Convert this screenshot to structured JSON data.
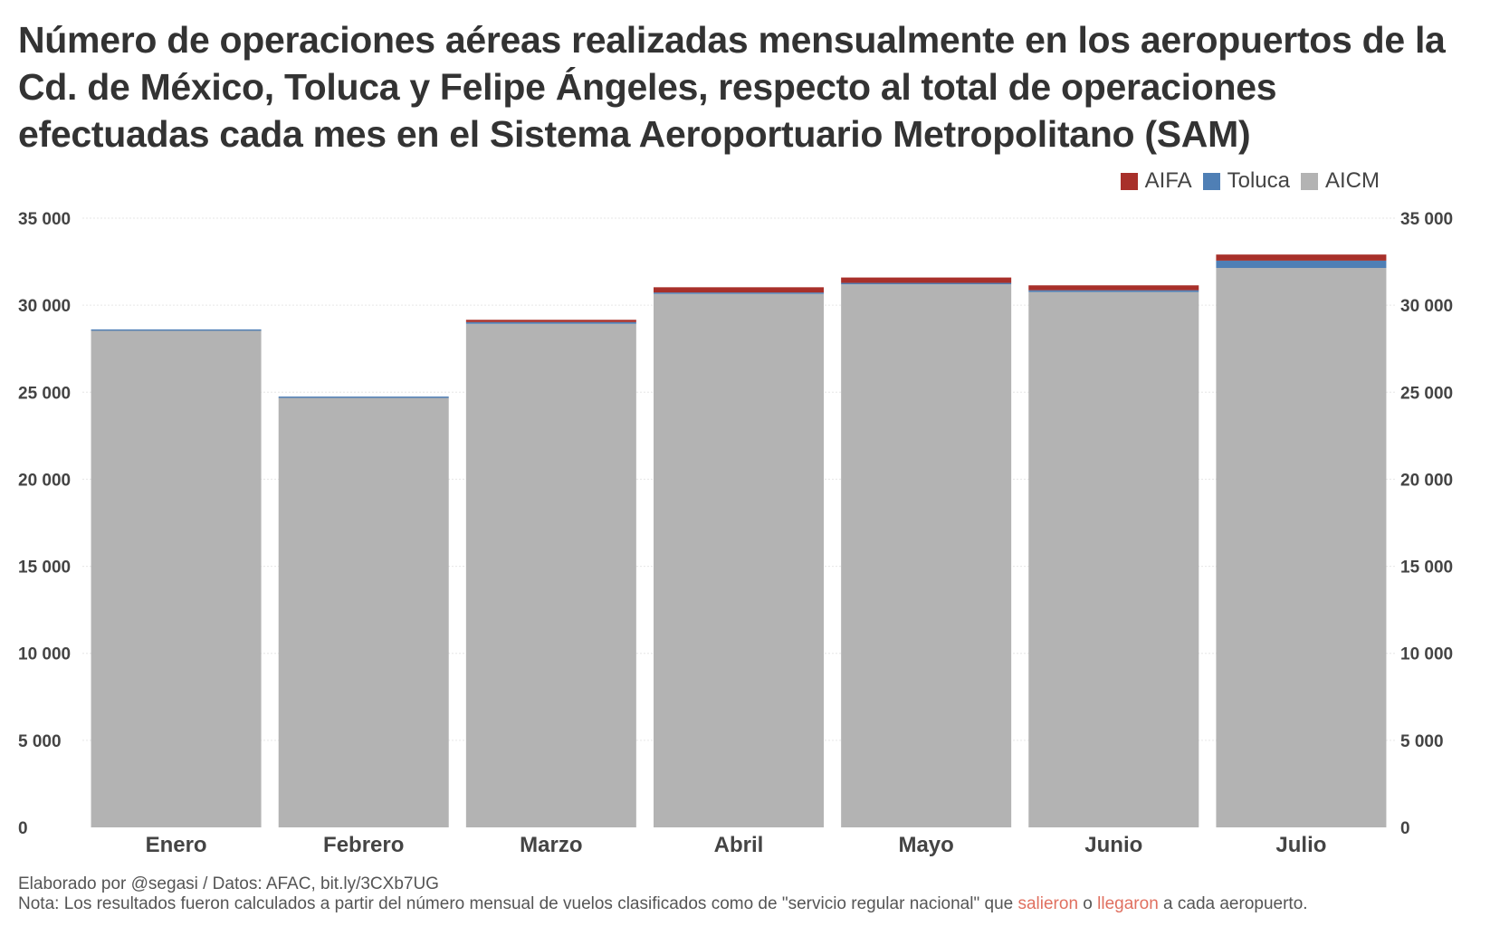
{
  "title": "Número de operaciones aéreas realizadas mensualmente en los aeropuertos de la Cd. de México, Toluca y Felipe Ángeles, respecto al total de operaciones efectuadas cada mes en el Sistema Aeroportuario Metropolitano (SAM)",
  "footer": {
    "credit": "Elaborado por @segasi / Datos: AFAC, bit.ly/3CXb7UG",
    "note_start": "Nota: Los resultados fueron calculados a partir del número mensual de vuelos clasificados como de \"servicio regular nacional\" que ",
    "note_salieron": "salieron",
    "note_o": " o ",
    "note_llegaron": "llegaron",
    "note_end": " a cada aeropuerto."
  },
  "chart_data": {
    "type": "bar",
    "stacked": true,
    "title": "Número de operaciones aéreas realizadas mensualmente en los aeropuertos de la Cd. de México, Toluca y Felipe Ángeles, respecto al total de operaciones efectuadas cada mes en el Sistema Aeroportuario Metropolitano (SAM)",
    "xlabel": "",
    "ylabel": "",
    "categories": [
      "Enero",
      "Febrero",
      "Marzo",
      "Abril",
      "Mayo",
      "Junio",
      "Julio"
    ],
    "series": [
      {
        "name": "AICM",
        "color": "#b3b3b3",
        "values": [
          28550,
          24690,
          28930,
          30650,
          31200,
          30760,
          32140
        ]
      },
      {
        "name": "Toluca",
        "color": "#4f7fb5",
        "values": [
          60,
          60,
          100,
          80,
          80,
          100,
          420
        ]
      },
      {
        "name": "AIFA",
        "color": "#a8302a",
        "values": [
          0,
          0,
          130,
          300,
          310,
          280,
          350
        ]
      }
    ],
    "legend_order": [
      "AIFA",
      "Toluca",
      "AICM"
    ],
    "legend_position": "top-right",
    "ylim": [
      0,
      35000
    ],
    "yticks": [
      0,
      5000,
      10000,
      15000,
      20000,
      25000,
      30000,
      35000
    ],
    "ytick_labels": [
      "0",
      "5 000",
      "10 000",
      "15 000",
      "20 000",
      "25 000",
      "30 000",
      "35 000"
    ],
    "grid": true,
    "y_axis_both_sides": true
  }
}
